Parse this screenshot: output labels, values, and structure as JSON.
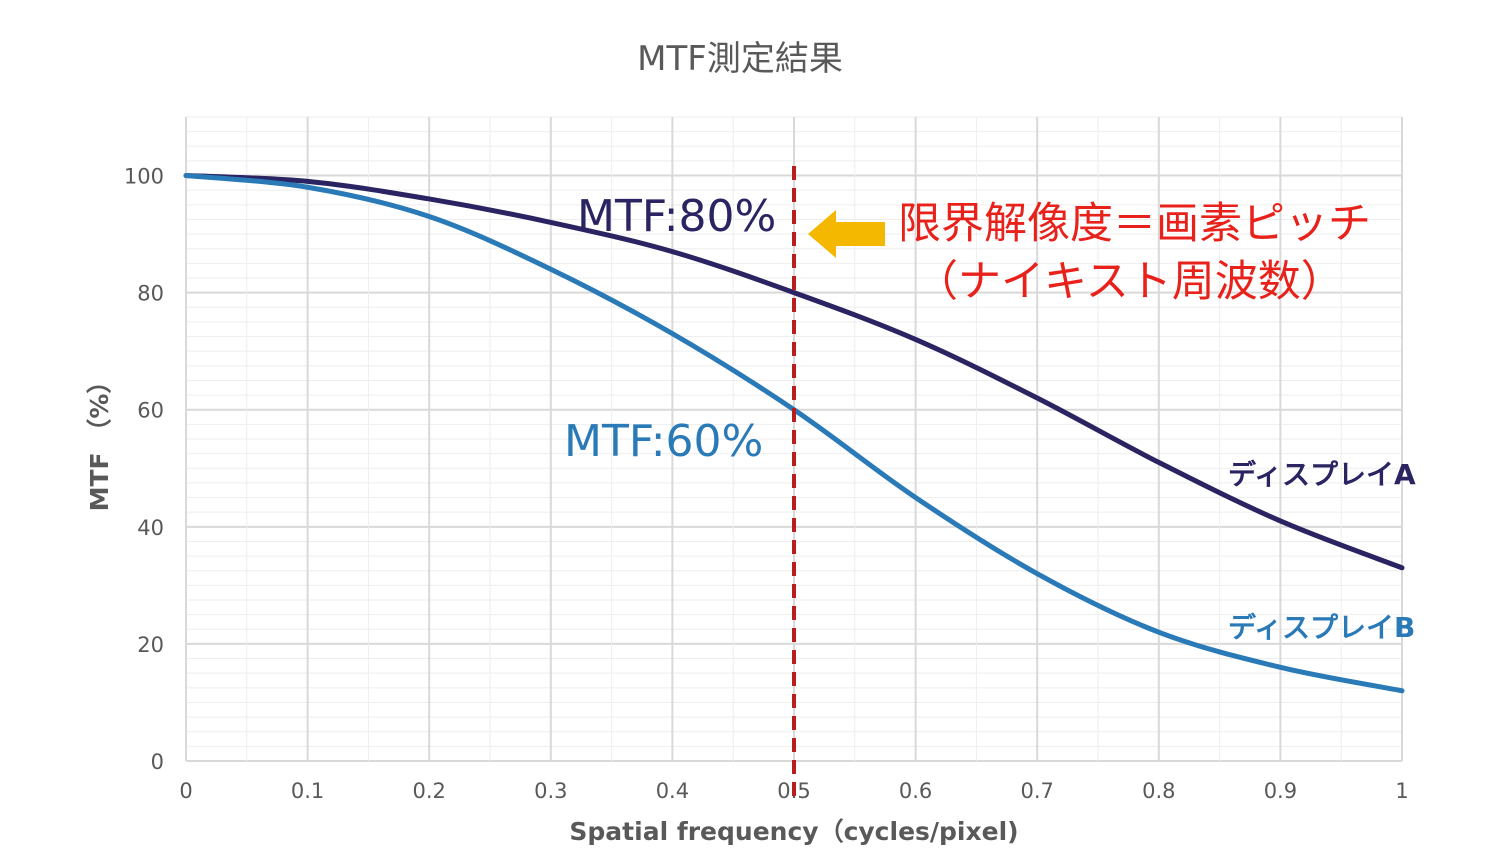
{
  "chart_data": {
    "type": "line",
    "title": "MTF測定結果",
    "xlabel": "Spatial frequency（cycles/pixel)",
    "ylabel": "MTF （%）",
    "xlim": [
      0,
      1
    ],
    "ylim": [
      0,
      110
    ],
    "x_ticks": [
      "0",
      "0.1",
      "0.2",
      "0.3",
      "0.4",
      "0.5",
      "0.6",
      "0.7",
      "0.8",
      "0.9",
      "1"
    ],
    "y_ticks": [
      "0",
      "20",
      "40",
      "60",
      "80",
      "100"
    ],
    "grid": true,
    "x": [
      0,
      0.1,
      0.2,
      0.3,
      0.4,
      0.5,
      0.6,
      0.7,
      0.8,
      0.9,
      1.0
    ],
    "series": [
      {
        "name": "ディスプレイA",
        "color": "#2a2462",
        "values": [
          100,
          99,
          96,
          92,
          87,
          80,
          72,
          62,
          51,
          41,
          33
        ]
      },
      {
        "name": "ディスプレイB",
        "color": "#2a7ab8",
        "values": [
          100,
          98,
          93,
          84,
          73,
          60,
          45,
          32,
          22,
          16,
          12
        ]
      }
    ],
    "vline": {
      "x": 0.5,
      "color": "#b81e1e",
      "style": "dashed"
    },
    "annotations": {
      "mtf_a": {
        "text": "MTF:80%",
        "color": "#2a2462"
      },
      "mtf_b": {
        "text": "MTF:60%",
        "color": "#2a7ab8"
      },
      "limit_line1": "限界解像度＝画素ピッチ",
      "limit_line2": "（ナイキスト周波数）",
      "arrow_color": "#f5b800"
    }
  }
}
